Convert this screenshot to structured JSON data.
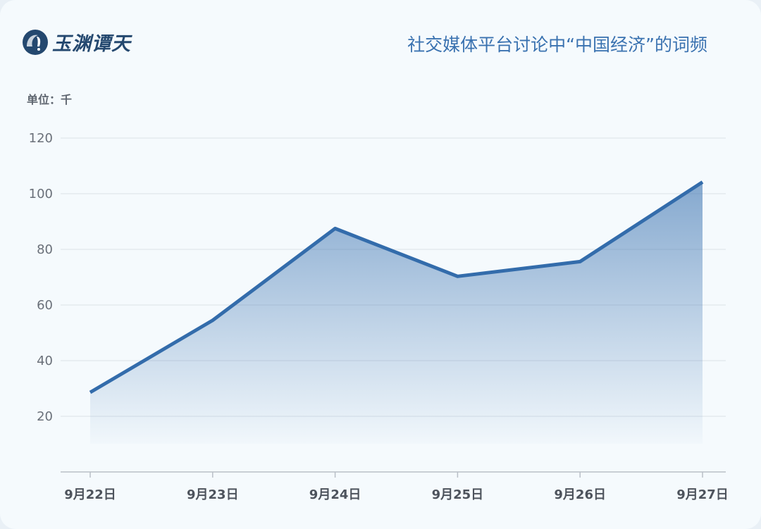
{
  "logo": {
    "text": "玉渊谭天"
  },
  "chart_data": {
    "type": "area",
    "title": "社交媒体平台讨论中“中国经济”的词频",
    "unit_label": "单位：千",
    "categories": [
      "9月22日",
      "9月23日",
      "9月24日",
      "9月25日",
      "9月26日",
      "9月27日"
    ],
    "values": [
      28.6,
      54.5,
      87.5,
      70.3,
      75.6,
      104.2
    ],
    "yticks": [
      20,
      40,
      60,
      80,
      100,
      120
    ],
    "ylim": [
      0,
      120
    ],
    "grid": true,
    "colors": {
      "line": "#336cab",
      "fill": "#3a72b0"
    }
  }
}
